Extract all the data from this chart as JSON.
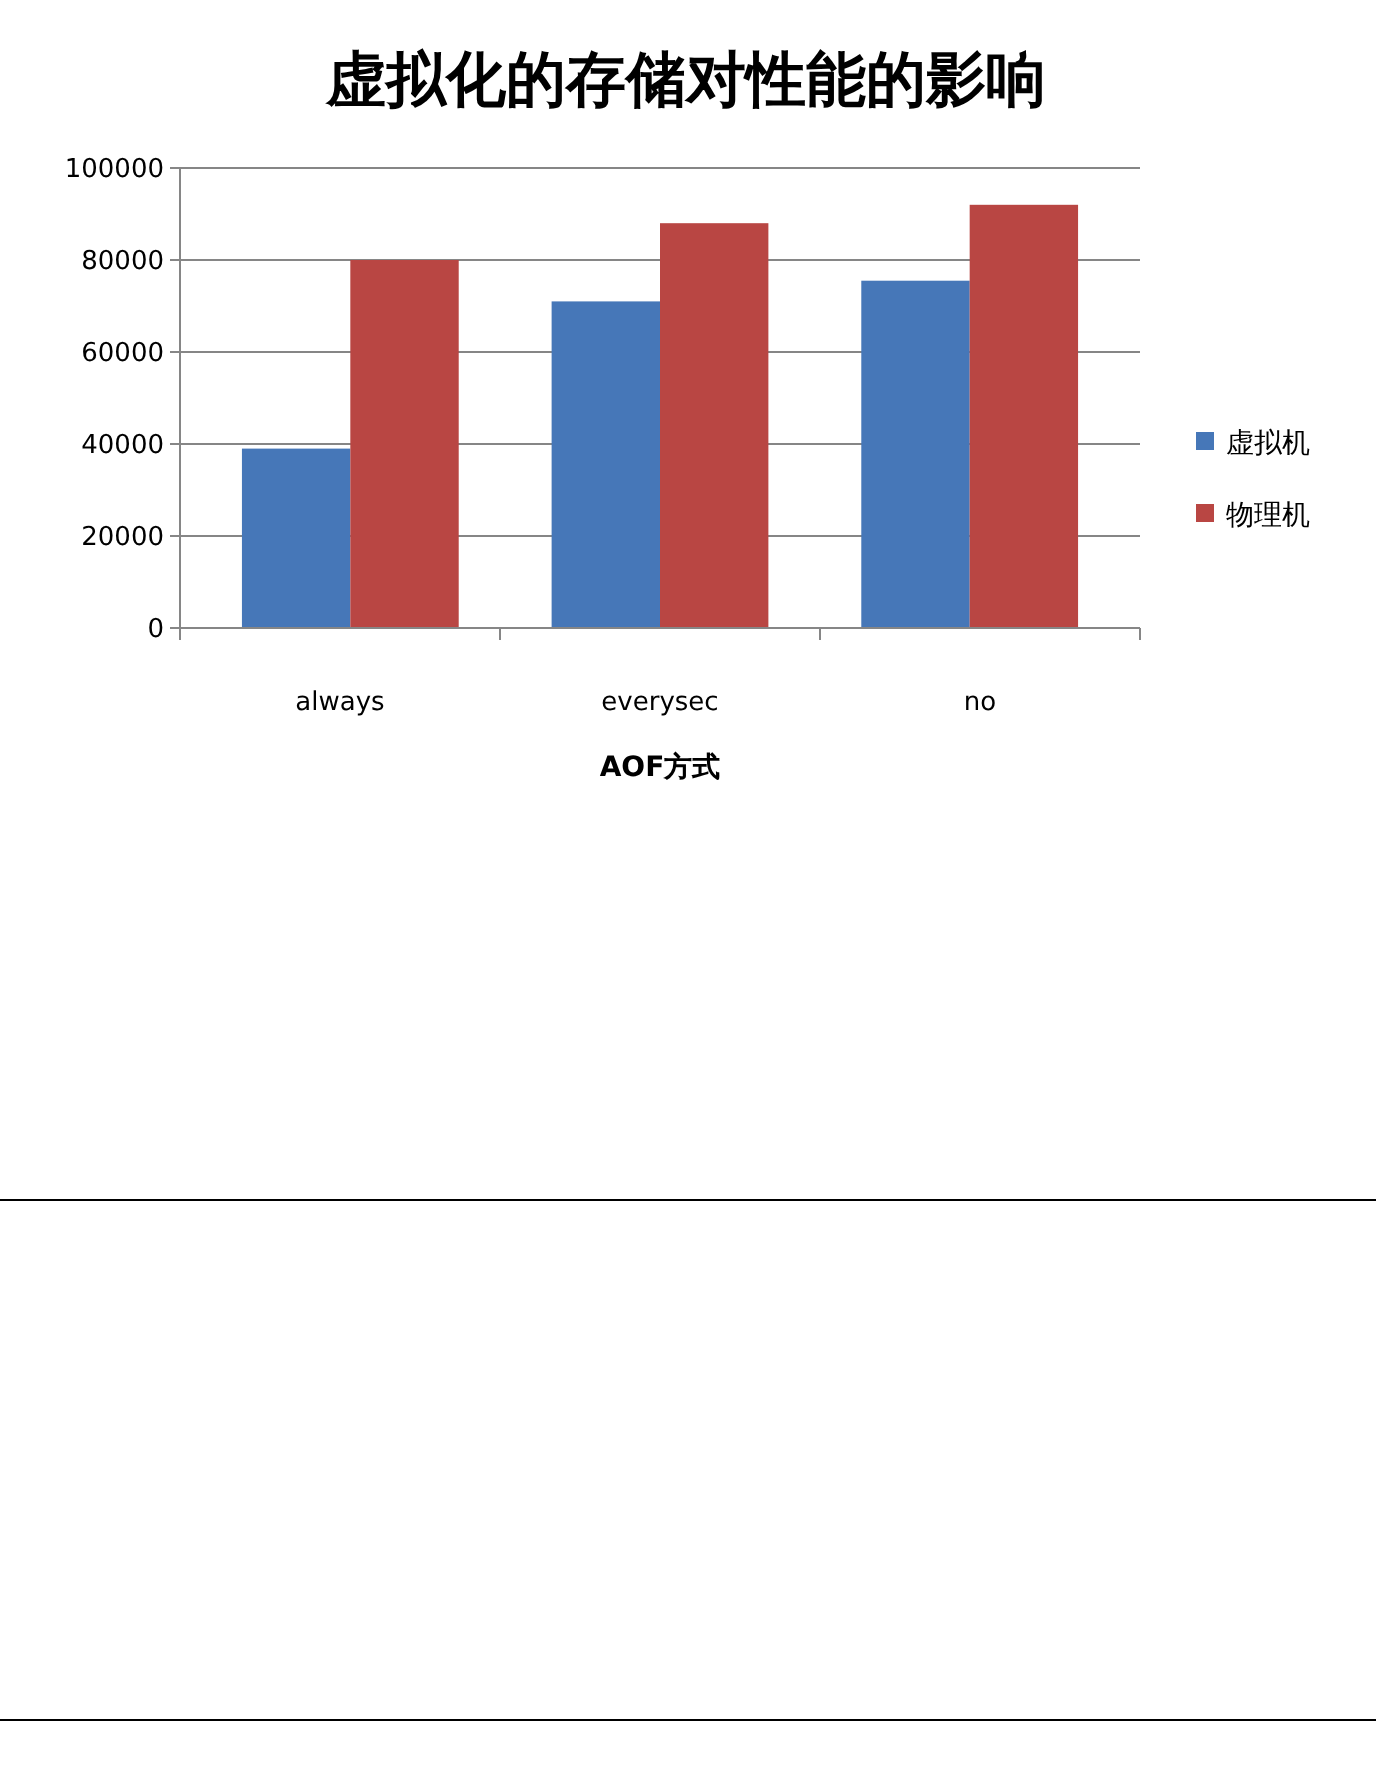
{
  "chart_data": {
    "type": "bar",
    "title": "虚拟化的存储对性能的影响",
    "xlabel": "AOF方式",
    "categories": [
      "always",
      "everysec",
      "no"
    ],
    "series": [
      {
        "name": "虚拟机",
        "color": "#4677b8",
        "values": [
          39000,
          71000,
          75500
        ]
      },
      {
        "name": "物理机",
        "color": "#b94643",
        "values": [
          80000,
          88000,
          92000
        ]
      }
    ],
    "ylim": [
      0,
      100000
    ],
    "yticks": [
      0,
      20000,
      40000,
      60000,
      80000,
      100000
    ],
    "grid": "y",
    "legend": "right"
  }
}
